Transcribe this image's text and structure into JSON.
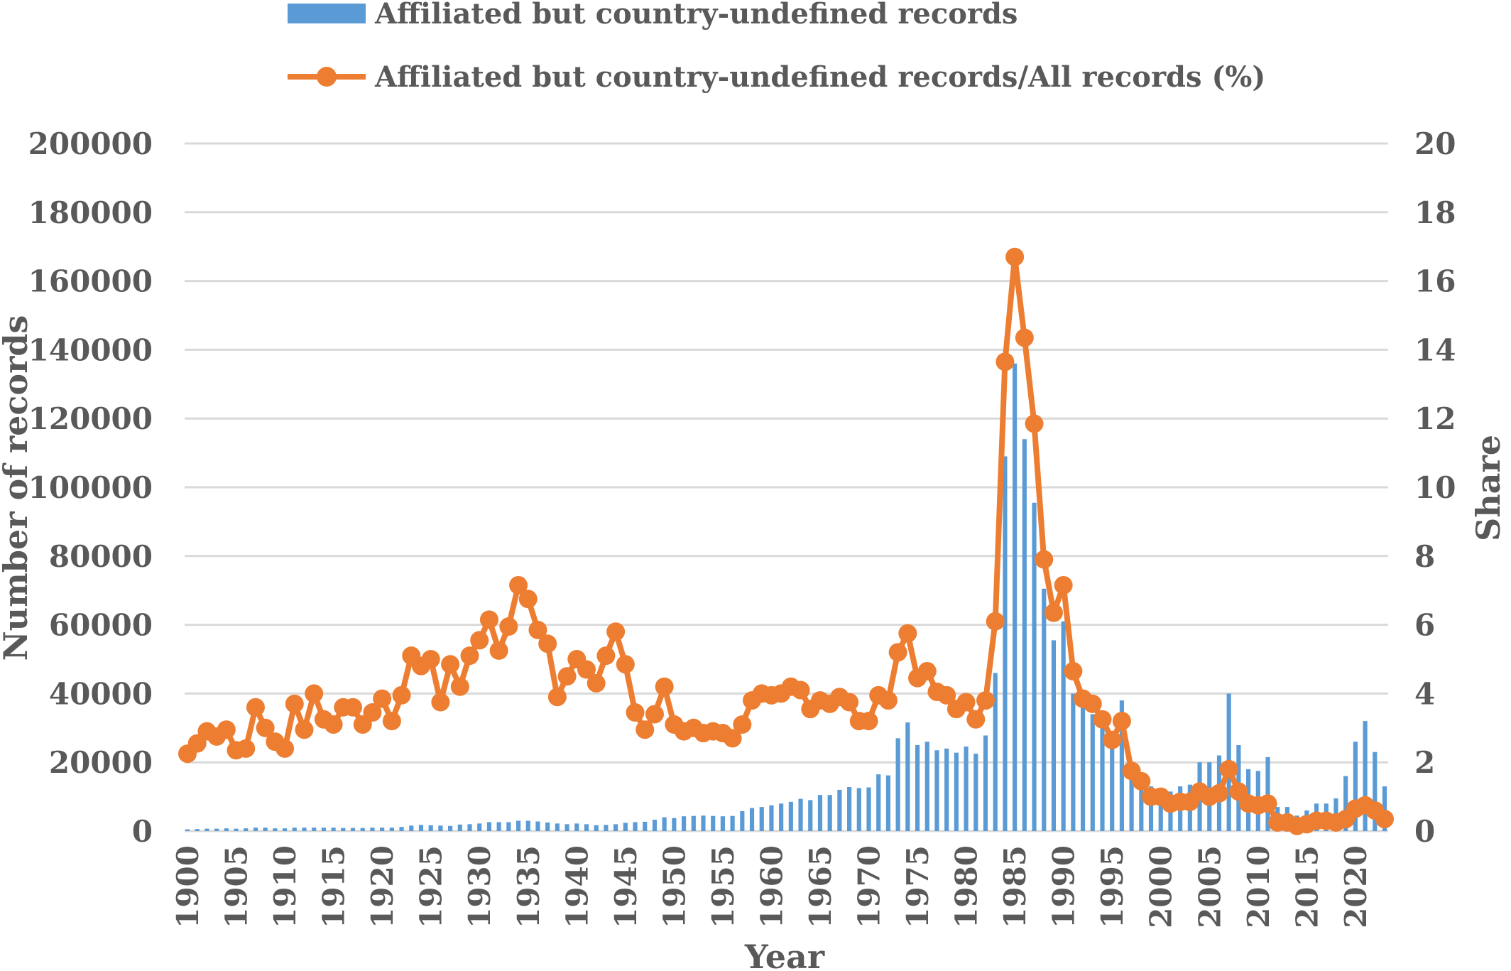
{
  "chart_data": {
    "type": "bar",
    "xlabel": "Year",
    "ylabel": "Number of records",
    "y2label": "Share",
    "ylim": [
      0,
      200000
    ],
    "y2lim": [
      0,
      20
    ],
    "yticks": [
      "0",
      "20000",
      "40000",
      "60000",
      "80000",
      "100000",
      "120000",
      "140000",
      "160000",
      "180000",
      "200000"
    ],
    "y2ticks": [
      "0",
      "2",
      "4",
      "6",
      "8",
      "10",
      "12",
      "14",
      "16",
      "18",
      "20"
    ],
    "xticks": [
      "1900",
      "1905",
      "1910",
      "1915",
      "1920",
      "1925",
      "1930",
      "1935",
      "1940",
      "1945",
      "1950",
      "1955",
      "1960",
      "1965",
      "1970",
      "1975",
      "1980",
      "1985",
      "1990",
      "1995",
      "2000",
      "2005",
      "2010",
      "2015",
      "2020"
    ],
    "grid": true,
    "legend_position": "top",
    "colors": {
      "bars": "#5b9bd5",
      "line": "#ed7d31",
      "grid": "#d9d9d9",
      "text": "#595959"
    },
    "x": [
      1900,
      1901,
      1902,
      1903,
      1904,
      1905,
      1906,
      1907,
      1908,
      1909,
      1910,
      1911,
      1912,
      1913,
      1914,
      1915,
      1916,
      1917,
      1918,
      1919,
      1920,
      1921,
      1922,
      1923,
      1924,
      1925,
      1926,
      1927,
      1928,
      1929,
      1930,
      1931,
      1932,
      1933,
      1934,
      1935,
      1936,
      1937,
      1938,
      1939,
      1940,
      1941,
      1942,
      1943,
      1944,
      1945,
      1946,
      1947,
      1948,
      1949,
      1950,
      1951,
      1952,
      1953,
      1954,
      1955,
      1956,
      1957,
      1958,
      1959,
      1960,
      1961,
      1962,
      1963,
      1964,
      1965,
      1966,
      1967,
      1968,
      1969,
      1970,
      1971,
      1972,
      1973,
      1974,
      1975,
      1976,
      1977,
      1978,
      1979,
      1980,
      1981,
      1982,
      1983,
      1984,
      1985,
      1986,
      1987,
      1988,
      1989,
      1990,
      1991,
      1992,
      1993,
      1994,
      1995,
      1996,
      1997,
      1998,
      1999,
      2000,
      2001,
      2002,
      2003,
      2004,
      2005,
      2006,
      2007,
      2008,
      2009,
      2010,
      2011,
      2012,
      2013,
      2014,
      2015,
      2016,
      2017,
      2018,
      2019,
      2020,
      2021,
      2022,
      2023
    ],
    "series": [
      {
        "name": "Affiliated but country-undefined records",
        "kind": "bar",
        "axis": "left",
        "values": [
          500,
          600,
          700,
          700,
          800,
          700,
          800,
          1000,
          1000,
          800,
          800,
          1000,
          1000,
          1000,
          1000,
          1000,
          900,
          900,
          900,
          1000,
          1000,
          1000,
          1200,
          1600,
          1800,
          1700,
          1600,
          1500,
          1900,
          2000,
          2200,
          2600,
          2600,
          2600,
          3000,
          3000,
          2800,
          2500,
          2200,
          2000,
          2200,
          2000,
          1700,
          1800,
          2000,
          2400,
          2600,
          2700,
          3300,
          4000,
          3800,
          4300,
          4400,
          4500,
          4400,
          4300,
          4400,
          5800,
          6700,
          7000,
          7500,
          8000,
          8500,
          9400,
          9000,
          10500,
          10500,
          12000,
          12800,
          12500,
          12700,
          16500,
          16200,
          27000,
          31600,
          25000,
          26000,
          23500,
          24000,
          22800,
          24600,
          22500,
          27800,
          46000,
          109000,
          136000,
          114000,
          95500,
          70500,
          55500,
          61000,
          40000,
          37000,
          34000,
          30000,
          29000,
          38000,
          19000,
          13500,
          13000,
          11500,
          11500,
          13000,
          13500,
          20000,
          20000,
          22000,
          40000,
          25000,
          18000,
          17500,
          21500,
          7000,
          7000,
          4500,
          6000,
          8000,
          8000,
          9500,
          16000,
          26000,
          32000,
          23000,
          13000
        ]
      },
      {
        "name": "Affiliated but country-undefined records/All records (%)",
        "kind": "line",
        "axis": "right",
        "values": [
          2.25,
          2.55,
          2.9,
          2.75,
          2.95,
          2.35,
          2.4,
          3.6,
          3.0,
          2.6,
          2.4,
          3.7,
          2.95,
          4.0,
          3.25,
          3.1,
          3.6,
          3.6,
          3.1,
          3.45,
          3.85,
          3.2,
          3.95,
          5.1,
          4.8,
          5.0,
          3.75,
          4.85,
          4.2,
          5.1,
          5.55,
          6.15,
          5.25,
          5.95,
          7.15,
          6.75,
          5.85,
          5.45,
          3.9,
          4.5,
          5.0,
          4.7,
          4.3,
          5.1,
          5.8,
          4.85,
          3.45,
          2.95,
          3.4,
          4.2,
          3.1,
          2.9,
          3.0,
          2.85,
          2.9,
          2.85,
          2.7,
          3.1,
          3.8,
          4.0,
          3.95,
          4.0,
          4.2,
          4.1,
          3.55,
          3.8,
          3.7,
          3.9,
          3.75,
          3.2,
          3.2,
          3.95,
          3.8,
          5.2,
          5.75,
          4.45,
          4.65,
          4.05,
          3.95,
          3.55,
          3.75,
          3.25,
          3.8,
          6.1,
          13.65,
          16.7,
          14.35,
          11.85,
          7.9,
          6.35,
          7.15,
          4.65,
          3.85,
          3.7,
          3.25,
          2.65,
          3.2,
          1.75,
          1.45,
          1.0,
          1.0,
          0.8,
          0.85,
          0.85,
          1.15,
          1.0,
          1.1,
          1.8,
          1.15,
          0.8,
          0.75,
          0.8,
          0.25,
          0.25,
          0.15,
          0.2,
          0.3,
          0.3,
          0.25,
          0.35,
          0.65,
          0.75,
          0.6,
          0.35
        ]
      }
    ]
  }
}
